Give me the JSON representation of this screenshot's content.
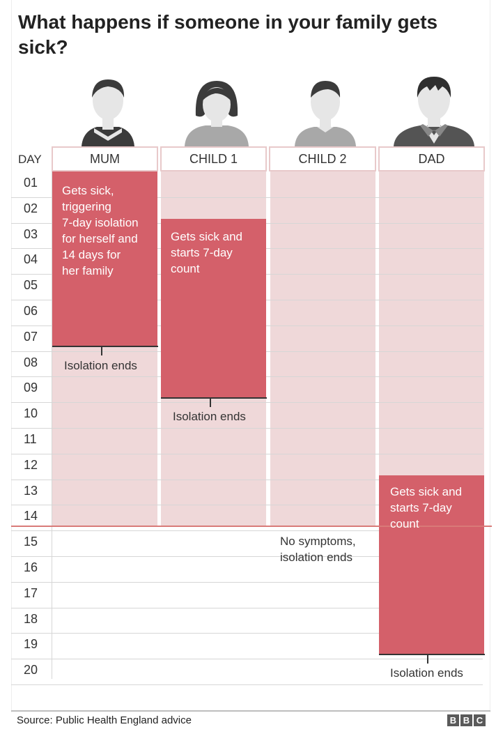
{
  "title": "What happens if someone in your family gets sick?",
  "day_header": "DAY",
  "days": [
    "01",
    "02",
    "03",
    "04",
    "05",
    "06",
    "07",
    "08",
    "09",
    "10",
    "11",
    "12",
    "13",
    "14",
    "15",
    "16",
    "17",
    "18",
    "19",
    "20"
  ],
  "columns": [
    {
      "label": "MUM",
      "icon": "woman-avatar-icon"
    },
    {
      "label": "CHILD 1",
      "icon": "girl-avatar-icon"
    },
    {
      "label": "CHILD 2",
      "icon": "boy-avatar-icon"
    },
    {
      "label": "DAD",
      "icon": "man-avatar-icon"
    }
  ],
  "bars": [
    {
      "member": "MUM",
      "isolation_days": [
        1,
        14
      ],
      "sick_days": [
        1,
        7
      ],
      "note_lines": [
        "Gets sick,",
        "triggering",
        "7-day isolation",
        "for herself and",
        "14 days for",
        "her family"
      ],
      "end_label": "Isolation ends",
      "end_day": 8
    },
    {
      "member": "CHILD 1",
      "isolation_days": [
        1,
        14
      ],
      "sick_days": [
        3,
        9
      ],
      "note_lines": [
        "Gets sick and",
        "starts 7-day",
        "count"
      ],
      "end_label": "Isolation ends",
      "end_day": 10
    },
    {
      "member": "CHILD 2",
      "isolation_days": [
        1,
        14
      ],
      "sick_days": null,
      "note_lines": [
        "No symptoms,",
        "isolation ends"
      ],
      "end_day": 15
    },
    {
      "member": "DAD",
      "isolation_days": [
        1,
        12
      ],
      "sick_days": [
        13,
        19
      ],
      "note_lines": [
        "Gets sick and",
        "starts 7-day",
        "count"
      ],
      "end_label": "Isolation ends",
      "end_day": 20
    }
  ],
  "colors": {
    "sick": "#d4606a",
    "isolation": "#efd8d9",
    "day15_line": "#d97a78"
  },
  "source": "Source: Public Health England advice",
  "logo_letters": [
    "B",
    "B",
    "C"
  ]
}
